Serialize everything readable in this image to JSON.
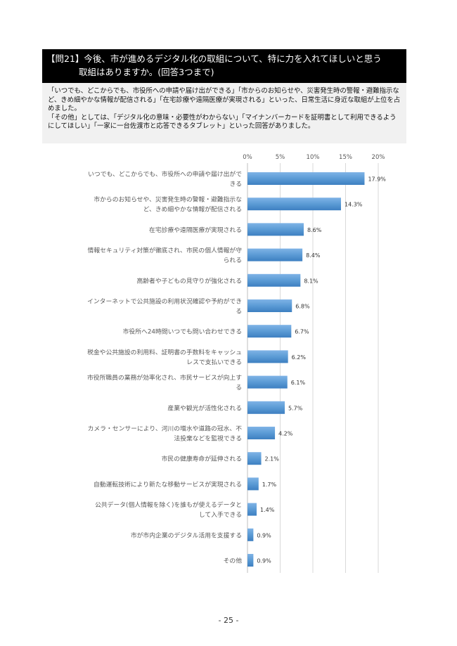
{
  "question": {
    "line1": "【問21】今後、市が進めるデジタル化の取組について、特に力を入れてほしいと思う",
    "line2": "取組はありますか。(回答3つまで)"
  },
  "summary": {
    "paragraph1": "「いつでも、どこからでも、市役所への申請や届け出ができる」「市からのお知らせや、災害発生時の警報・避難指示など、きめ細やかな情報が配信される」「在宅診療や遠隔医療が実現される」といった、日常生活に身近な取組が上位を占めました。",
    "paragraph2": "「その他」としては、「デジタル化の意味・必要性がわからない」「マイナンバーカードを証明書として利用できるようにしてほしい」「一家に一台佐渡市と応答できるタブレット」といった回答がありました。"
  },
  "chart_data": {
    "type": "bar",
    "orientation": "horizontal",
    "xlim": [
      0,
      20
    ],
    "x_ticks": [
      "0%",
      "5%",
      "10%",
      "15%",
      "20%"
    ],
    "bar_color": "#5b9bd5",
    "categories": [
      [
        "いつでも、どこからでも、市役所への申請や届け出がで",
        "きる"
      ],
      [
        "市からのお知らせや、災害発生時の警報・避難指示な",
        "ど、きめ細やかな情報が配信される"
      ],
      [
        "在宅診療や遠隔医療が実現される"
      ],
      [
        "情報セキュリティ対策が徹底され、市民の個人情報が守",
        "られる"
      ],
      [
        "高齢者や子どもの見守りが強化される"
      ],
      [
        "インターネットで公共施設の利用状況確認や予約ができ",
        "る"
      ],
      [
        "市役所へ24時間いつでも問い合わせできる"
      ],
      [
        "税金や公共施設の利用料、証明書の手数料をキャッシュ",
        "レスで支払いできる"
      ],
      [
        "市役所職員の業務が効率化され、市民サービスが向上す",
        "る"
      ],
      [
        "産業や観光が活性化される"
      ],
      [
        "カメラ・センサーにより、河川の増水や道路の冠水、不",
        "法投棄などを監視できる"
      ],
      [
        "市民の健康寿命が延伸される"
      ],
      [
        "自動運転技術により新たな移動サービスが実現される"
      ],
      [
        "公共データ(個人情報を除く)を誰もが使えるデータと",
        "して入手できる"
      ],
      [
        "市が市内企業のデジタル活用を支援する"
      ],
      [
        "その他"
      ]
    ],
    "values": [
      17.9,
      14.3,
      8.6,
      8.4,
      8.1,
      6.8,
      6.7,
      6.2,
      6.1,
      5.7,
      4.2,
      2.1,
      1.7,
      1.4,
      0.9,
      0.9
    ],
    "value_labels": [
      "17.9%",
      "14.3%",
      "8.6%",
      "8.4%",
      "8.1%",
      "6.8%",
      "6.7%",
      "6.2%",
      "6.1%",
      "5.7%",
      "4.2%",
      "2.1%",
      "1.7%",
      "1.4%",
      "0.9%",
      "0.9%"
    ]
  },
  "page_number": "- 25 -"
}
